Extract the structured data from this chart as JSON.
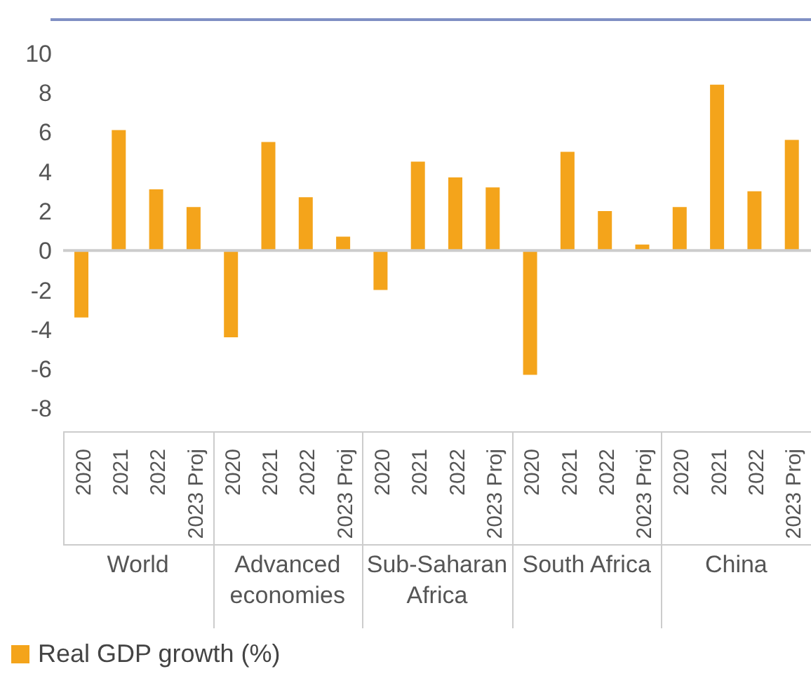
{
  "chart_data": {
    "type": "bar",
    "categories": [
      "2020",
      "2021",
      "2022",
      "2023 Proj",
      "2020",
      "2021",
      "2022",
      "2023 Proj",
      "2020",
      "2021",
      "2022",
      "2023 Proj",
      "2020",
      "2021",
      "2022",
      "2023 Proj",
      "2020",
      "2021",
      "2022",
      "2023 Proj"
    ],
    "series": [
      {
        "name": "Real GDP growth (%)",
        "color": "#f4a41b",
        "values": [
          -3.4,
          6.1,
          3.1,
          2.2,
          -4.4,
          5.5,
          2.7,
          0.7,
          -2.0,
          4.5,
          3.7,
          3.2,
          -6.3,
          5.0,
          2.0,
          0.3,
          2.2,
          8.4,
          3.0,
          5.6
        ]
      }
    ],
    "annotations": [
      "World",
      "Advanced economies",
      "Sub-Saharan Africa",
      "South Africa",
      "China"
    ],
    "ylim": [
      -9.2,
      11.7
    ],
    "yticks": [
      -8,
      -6,
      -4,
      -2,
      0,
      2,
      4,
      6,
      8,
      10
    ],
    "ref_lines": [
      {
        "axis": "y",
        "value": 0,
        "color": "#cccccc"
      }
    ],
    "grid": false,
    "legend": "bottom left"
  }
}
